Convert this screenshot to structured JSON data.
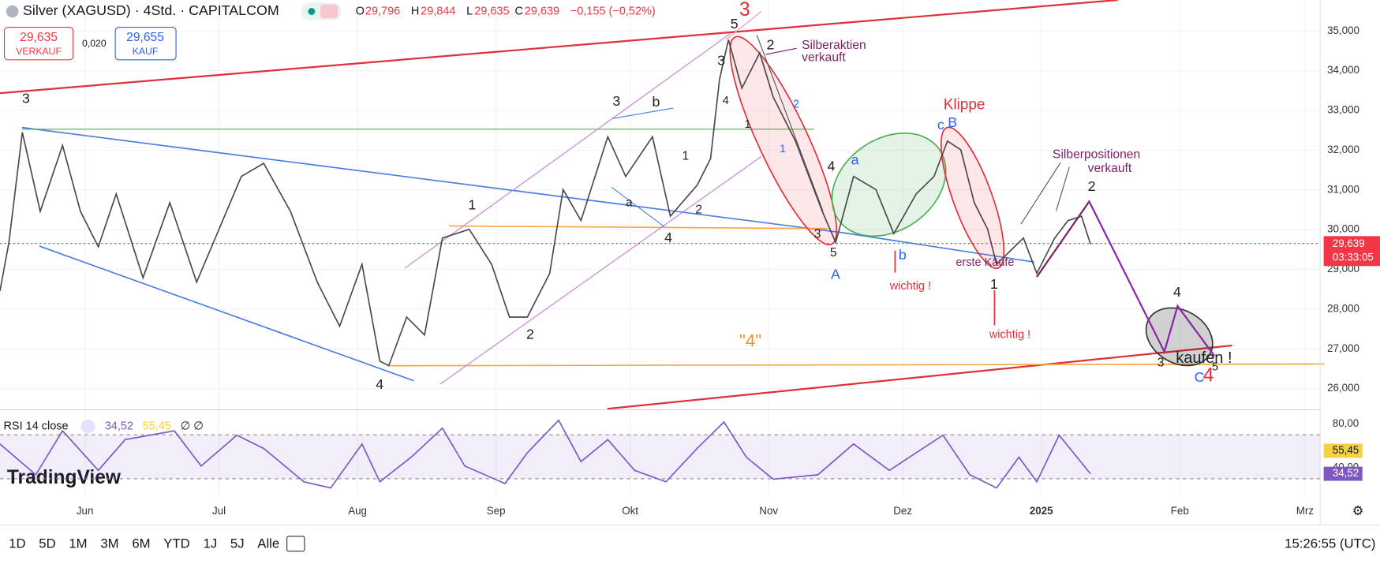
{
  "header": {
    "symbol": "Silver (XAGUSD) · 4Std. · CAPITALCOM",
    "o_label": "O",
    "o": "29,796",
    "h_label": "H",
    "h": "29,844",
    "l_label": "L",
    "l": "29,635",
    "c_label": "C",
    "c": "29,639",
    "change": "−0,155 (−0,52%)",
    "sell": "29,635",
    "sell_label": "VERKAUF",
    "spread": "0,020",
    "buy": "29,655",
    "buy_label": "KAUF"
  },
  "chart_data": {
    "type": "line",
    "x": [
      133,
      135,
      138,
      142,
      147,
      151,
      155,
      159,
      165,
      171,
      177,
      187,
      192,
      198,
      204,
      209,
      214,
      218,
      220,
      224,
      228,
      232,
      238,
      243,
      247,
      251,
      256,
      259,
      263,
      269,
      273,
      279,
      283,
      289,
      292,
      294,
      296,
      299,
      303,
      306,
      311,
      317,
      320,
      324,
      329,
      333,
      338,
      342,
      345,
      348,
      351,
      354,
      356,
      359,
      362,
      365,
      369,
      372,
      375,
      377
    ],
    "series": [
      {
        "name": "XAGUSD",
        "color": "#4a4a4a",
        "values": [
          28.46,
          29.68,
          32.45,
          30.46,
          32.12,
          30.46,
          29.57,
          30.9,
          28.79,
          30.68,
          28.68,
          31.34,
          31.67,
          30.46,
          28.68,
          27.57,
          29.13,
          26.69,
          26.58,
          27.8,
          27.35,
          29.79,
          30.01,
          29.13,
          27.8,
          27.8,
          28.9,
          31.01,
          30.23,
          32.34,
          31.34,
          32.34,
          30.34,
          31.12,
          31.79,
          33.78,
          34.78,
          33.56,
          34.45,
          33.34,
          32.23,
          30.46,
          29.68,
          31.34,
          31.01,
          29.9,
          30.9,
          31.34,
          32.23,
          32.01,
          30.68,
          30.01,
          29.13,
          29.46,
          29.79,
          28.9,
          29.79,
          30.23,
          30.34,
          29.64
        ]
      }
    ],
    "xlim": [
      133,
      428.4
    ],
    "xticks": [
      {
        "value": 152,
        "label": "Jun"
      },
      {
        "value": 182,
        "label": "Jul"
      },
      {
        "value": 213,
        "label": "Aug"
      },
      {
        "value": 244,
        "label": "Sep"
      },
      {
        "value": 274,
        "label": "Okt"
      },
      {
        "value": 305,
        "label": "Nov"
      },
      {
        "value": 335,
        "label": "Dez"
      },
      {
        "value": 366,
        "label": "2025"
      },
      {
        "value": 397,
        "label": "Feb"
      },
      {
        "value": 425,
        "label": "Mrz"
      }
    ],
    "ylim": [
      25.47,
      35.78
    ],
    "yticks": [
      {
        "value": 35,
        "label": "35,000"
      },
      {
        "value": 34,
        "label": "34,000"
      },
      {
        "value": 33,
        "label": "33,000"
      },
      {
        "value": 32,
        "label": "32,000"
      },
      {
        "value": 31,
        "label": "31,000"
      },
      {
        "value": 30,
        "label": "30,000"
      },
      {
        "value": 29,
        "label": "29,000"
      },
      {
        "value": 28,
        "label": "28,000"
      },
      {
        "value": 27,
        "label": "27,000"
      },
      {
        "value": 26,
        "label": "26,000"
      }
    ],
    "grid": true,
    "last_price": {
      "value": 29.639,
      "label": "29,639",
      "countdown": "03:33:05",
      "color": "#f23645"
    }
  },
  "rsi": {
    "title": "RSI 14 close",
    "rsi_value": {
      "value": 34.52,
      "label": "34,52"
    },
    "ma_value": {
      "value": 55.45,
      "label": "55,45"
    },
    "color": "#7e57c2",
    "ylim": [
      13.6,
      91.2
    ],
    "band": [
      70,
      30
    ],
    "yticks": [
      {
        "value": 80,
        "label": "80,00"
      },
      {
        "value": 40,
        "label": "40,00"
      }
    ],
    "x": [
      133,
      141,
      147,
      155,
      161,
      172,
      178,
      186,
      192,
      201,
      207,
      214,
      218,
      225,
      232,
      237,
      246,
      251,
      258,
      263,
      269,
      275,
      282,
      289,
      295,
      300,
      306,
      316,
      324,
      332,
      344,
      350,
      356,
      361,
      365,
      370,
      377
    ],
    "values": [
      61.6,
      33.6,
      73.6,
      37.6,
      65.6,
      73.6,
      41.6,
      69.6,
      57.6,
      27.2,
      21.6,
      61.6,
      27.2,
      49.6,
      76,
      41.6,
      25.6,
      53.6,
      83.2,
      45.6,
      65.6,
      37.6,
      27.2,
      57.6,
      81.6,
      49.6,
      29.6,
      33.6,
      61.6,
      37.6,
      69.6,
      33.6,
      21.6,
      49.6,
      27.2,
      69.6,
      34.52
    ]
  },
  "annotations": [
    "3",
    "5",
    "3",
    "2",
    "Silberaktien",
    "verkauft",
    "3",
    "4",
    "1",
    "2",
    "1",
    "3",
    "b",
    "1",
    "1",
    "2",
    "a",
    "4",
    "4",
    "a",
    "3",
    "5",
    "A",
    "b",
    "wichtig !",
    "c",
    "B",
    "Klippe",
    "Silberpositionen",
    "verkauft",
    "2",
    "erste Käufe",
    "1",
    "wichtig !",
    "2",
    "4",
    "\"4\"",
    "4",
    "3",
    "kaufen !",
    "C",
    "4",
    "5"
  ],
  "logo": "TradingView",
  "toolbar": {
    "ranges": [
      "1D",
      "5D",
      "1M",
      "3M",
      "6M",
      "YTD",
      "1J",
      "5J",
      "Alle"
    ],
    "clock": "15:26:55 (UTC)"
  }
}
